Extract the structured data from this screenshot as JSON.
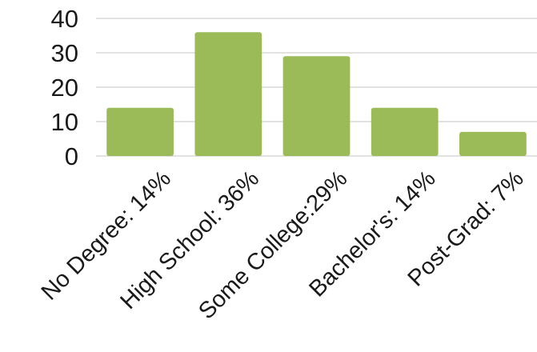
{
  "chart_data": {
    "type": "bar",
    "categories": [
      "No Degree: 14%",
      "High School: 36%",
      "Some College:29%",
      "Bachelor's: 14%",
      "Post-Grad: 7%"
    ],
    "values": [
      14,
      36,
      29,
      14,
      7
    ],
    "title": "",
    "xlabel": "",
    "ylabel": "",
    "ylim": [
      0,
      40
    ],
    "yticks": [
      0,
      10,
      20,
      30,
      40
    ],
    "grid": true,
    "bar_color": "#9bbb59",
    "legend": "none"
  }
}
